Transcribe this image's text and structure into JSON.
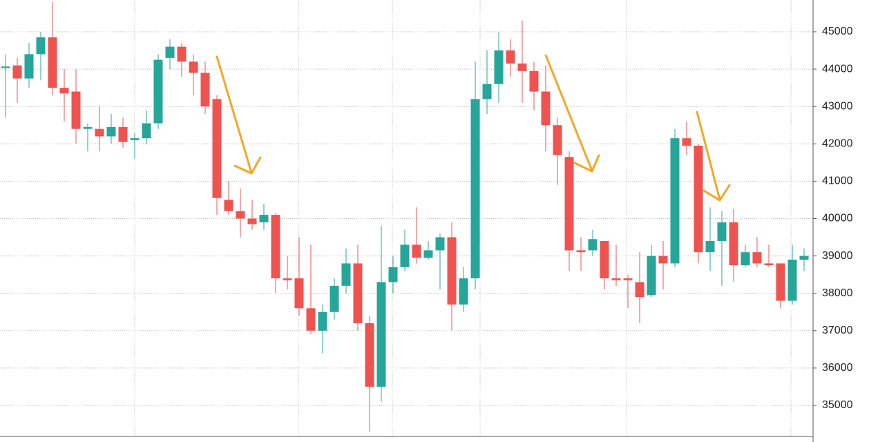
{
  "chart_data": {
    "type": "candlestick",
    "open": [
      44030,
      44100,
      43750,
      44400,
      44850,
      43500,
      43400,
      42400,
      42400,
      42200,
      42450,
      42100,
      42150,
      42550,
      44300,
      44600,
      44200,
      43900,
      43200,
      40500,
      40200,
      40000,
      39900,
      40100,
      38400,
      38400,
      37600,
      37000,
      37500,
      38200,
      38800,
      37200,
      35500,
      38300,
      38700,
      39300,
      38950,
      39150,
      39500,
      37700,
      38400,
      43200,
      43600,
      44500,
      44150,
      43950,
      43400,
      42500,
      41650,
      39150,
      39150,
      39400,
      38400,
      38400,
      38300,
      37950,
      39000,
      38800,
      42150,
      41950,
      39100,
      39400,
      39900,
      38750,
      39100,
      38800,
      38800,
      37800,
      38900
    ],
    "high": [
      44400,
      44300,
      44700,
      45000,
      45800,
      44000,
      44000,
      42550,
      43000,
      42800,
      42700,
      42300,
      42900,
      44400,
      44800,
      44700,
      44400,
      44200,
      43300,
      41000,
      40800,
      40500,
      40400,
      40150,
      39000,
      39500,
      39300,
      37700,
      38400,
      39200,
      39300,
      37400,
      39800,
      39000,
      39700,
      40300,
      39400,
      39600,
      39900,
      38700,
      44200,
      44500,
      45000,
      44800,
      45300,
      44200,
      44100,
      42700,
      41800,
      39500,
      39700,
      39400,
      39300,
      38500,
      39100,
      39300,
      39400,
      42400,
      42600,
      42000,
      40300,
      40200,
      40250,
      39300,
      39500,
      39300,
      38800,
      39300,
      39200
    ],
    "low": [
      42700,
      43100,
      43500,
      43700,
      43300,
      42600,
      42000,
      41800,
      41800,
      42000,
      41900,
      41600,
      42000,
      42400,
      44000,
      43800,
      43300,
      42800,
      40100,
      40100,
      39500,
      39700,
      39700,
      38000,
      38100,
      37400,
      36900,
      36400,
      37300,
      38000,
      37000,
      34300,
      35100,
      38000,
      38600,
      38800,
      38900,
      38100,
      37000,
      37500,
      38100,
      42800,
      43100,
      43800,
      43100,
      42900,
      41800,
      40900,
      38600,
      38600,
      39000,
      38100,
      38200,
      37600,
      37200,
      37900,
      38100,
      38700,
      41700,
      38800,
      38600,
      38200,
      38300,
      38700,
      38700,
      38700,
      37600,
      37700,
      38600
    ],
    "close": [
      44070,
      43750,
      44400,
      44850,
      43500,
      43350,
      42400,
      42450,
      42200,
      42450,
      42050,
      42150,
      42550,
      44250,
      44600,
      44200,
      43900,
      43000,
      40550,
      40200,
      40000,
      39850,
      40100,
      38400,
      38350,
      37600,
      37000,
      37500,
      38200,
      38800,
      37200,
      35500,
      38300,
      38700,
      39300,
      38950,
      39150,
      39500,
      37700,
      38400,
      43200,
      43600,
      44500,
      44150,
      43950,
      43400,
      42500,
      41700,
      39150,
      39100,
      39450,
      38400,
      38350,
      38350,
      37900,
      39000,
      38800,
      42150,
      41950,
      39100,
      39400,
      39900,
      38750,
      39100,
      38800,
      38750,
      37800,
      38900,
      39000
    ],
    "up_color": "#26a69a",
    "down_color": "#ef5350",
    "ylim": [
      34020,
      45850
    ],
    "yticks": [
      35000,
      36000,
      37000,
      38000,
      39000,
      40000,
      41000,
      42000,
      43000,
      44000,
      45000
    ],
    "grid": true
  }
}
